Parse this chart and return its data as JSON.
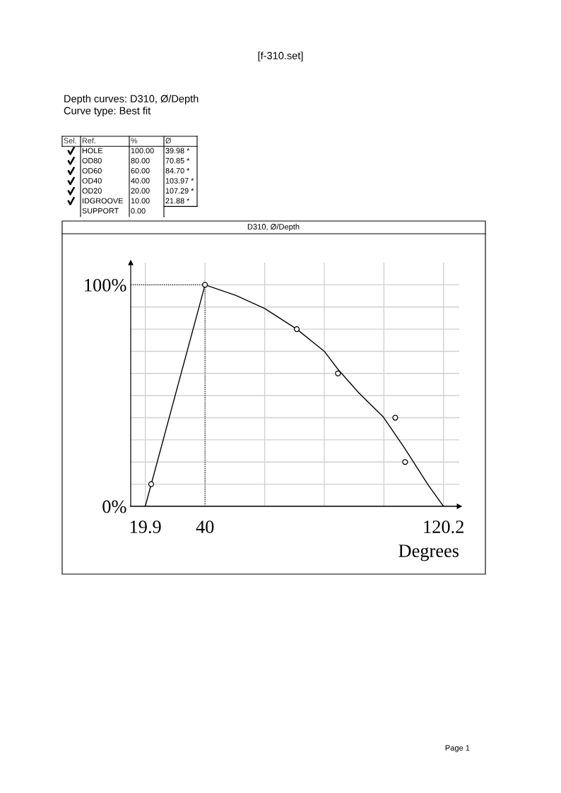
{
  "chart_data": [
    {
      "type": "other",
      "title": "Depth curves: D310, Ø/Depth",
      "subtitle": "Curve type: Best fit",
      "annotations": [
        "[f-310.set]",
        "Sel.",
        "Ref.",
        "Page 1"
      ],
      "categories": [
        "HOLE",
        "OD80",
        "OD60",
        "OD40",
        "OD20",
        "IDGROOVE",
        "SUPPORT"
      ],
      "series": [
        {
          "name": "%",
          "values": [
            100,
            80,
            60,
            40,
            20,
            10,
            0
          ],
          "value_labels": [
            "100.00",
            "80.00",
            "60.00",
            "40.00",
            "20.00",
            "10.00",
            "0.00"
          ]
        },
        {
          "name": "Ø",
          "values": [
            39.98,
            70.85,
            84.7,
            103.97,
            107.29,
            21.88,
            null
          ],
          "value_labels": [
            "39.98 *",
            "70.85 *",
            "84.70 *",
            "103.97 *",
            "107.29 *",
            "21.88 *",
            null
          ]
        }
      ]
    },
    {
      "type": "line",
      "title": "D310, Ø/Depth",
      "xlabel": "Degrees",
      "xlim": [
        15,
        125.5
      ],
      "ylim": [
        0,
        110
      ],
      "xticks": [
        19.9,
        40,
        {
          "value": 60.05,
          "label": null
        },
        {
          "value": 80.1,
          "label": null
        },
        {
          "value": 100.15,
          "label": null
        },
        120.2
      ],
      "yticks": [
        {
          "value": 0,
          "label": "0%"
        },
        {
          "value": 10,
          "label": null
        },
        {
          "value": 20,
          "label": null
        },
        {
          "value": 30,
          "label": null
        },
        {
          "value": 40,
          "label": null
        },
        {
          "value": 50,
          "label": null
        },
        {
          "value": 60,
          "label": null
        },
        {
          "value": 70,
          "label": null
        },
        {
          "value": 80,
          "label": null
        },
        {
          "value": 90,
          "label": null
        },
        {
          "value": 100,
          "label": "100%"
        }
      ],
      "grid": true,
      "legend": false,
      "series": [
        {
          "type": "line",
          "color": "#000000",
          "marker": "none",
          "x": [
            19.9,
            40,
            50.4,
            60.07,
            70.85,
            80.1,
            84.8,
            91.6,
            99.97,
            107,
            115.1,
            120.2
          ],
          "values": [
            0,
            100,
            95.2,
            89.3,
            80,
            70,
            61.7,
            51.4,
            40.3,
            26.5,
            9.5,
            0
          ]
        },
        {
          "type": "scatter",
          "color": "#000000",
          "marker": "circle",
          "x": [
            21.88,
            39.98,
            70.85,
            84.7,
            103.97,
            107.29
          ],
          "values": [
            10,
            100,
            80,
            60,
            40,
            20
          ]
        }
      ],
      "ref_lines": [
        {
          "axis": "x",
          "value": 40,
          "color": "#000000",
          "line_style": "dotted"
        },
        {
          "axis": "y",
          "value": 100,
          "color": "#000000",
          "line_style": "dotted"
        }
      ]
    }
  ]
}
